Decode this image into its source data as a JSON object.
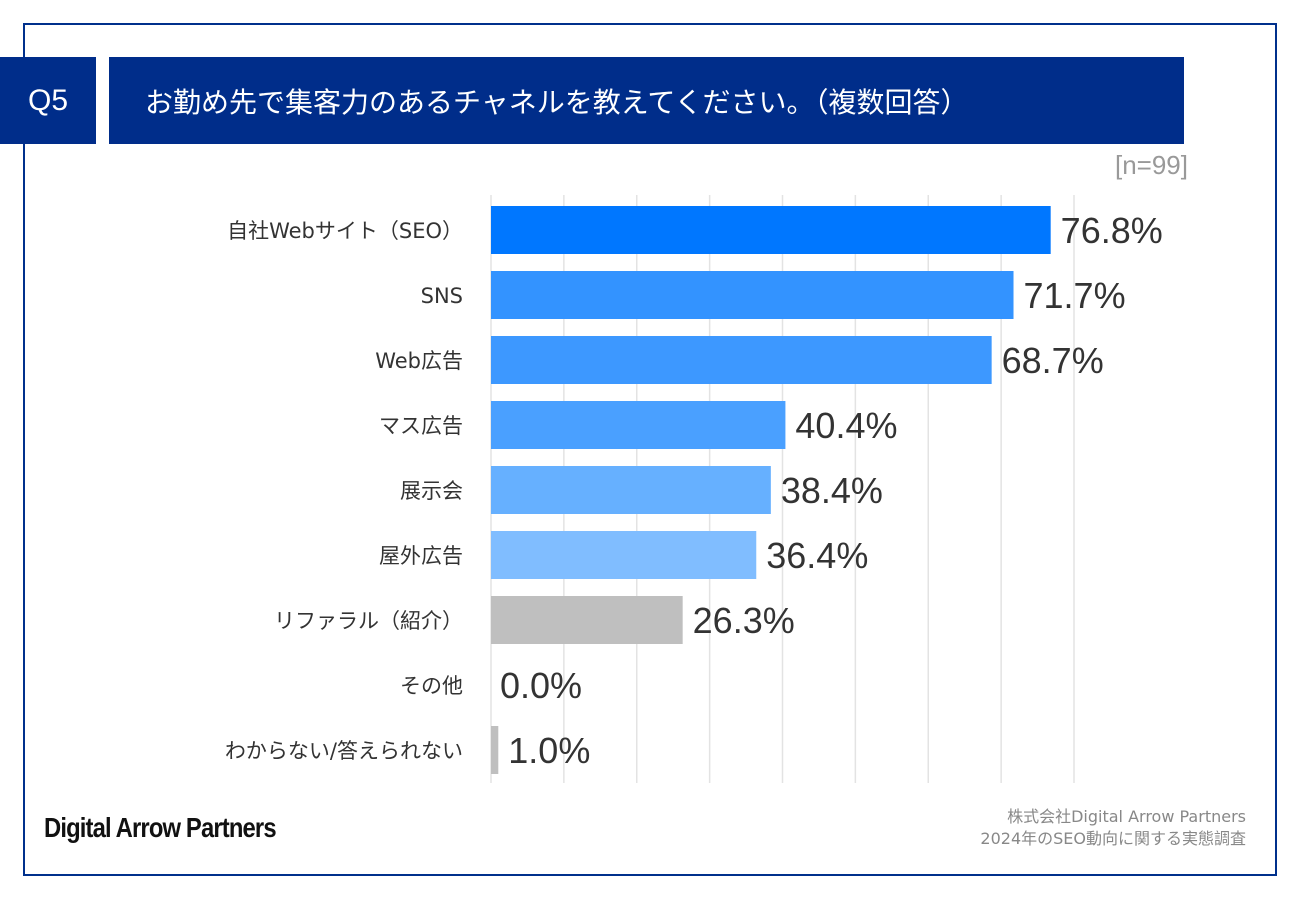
{
  "header": {
    "question_label": "Q5",
    "title": "お勤め先で集客力のあるチャネルを教えてください。（複数回答）",
    "sample_size": "[n=99]"
  },
  "chart_data": {
    "type": "bar",
    "orientation": "horizontal",
    "categories": [
      "自社Webサイト（SEO）",
      "SNS",
      "Web広告",
      "マス広告",
      "展示会",
      "屋外広告",
      "リファラル（紹介）",
      "その他",
      "わからない/答えられない"
    ],
    "values": [
      76.8,
      71.7,
      68.7,
      40.4,
      38.4,
      36.4,
      26.3,
      0.0,
      1.0
    ],
    "value_labels": [
      "76.8%",
      "71.7%",
      "68.7%",
      "40.4%",
      "38.4%",
      "36.4%",
      "26.3%",
      "0.0%",
      "1.0%"
    ],
    "colors": [
      "#0077ff",
      "#3393ff",
      "#3d98ff",
      "#4aa0ff",
      "#66b0ff",
      "#80bdff",
      "#bfbfbf",
      "#bfbfbf",
      "#bfbfbf"
    ],
    "xlim": [
      0,
      80
    ],
    "grid": true,
    "xlabel": "",
    "ylabel": ""
  },
  "footer": {
    "logo": "Digital Arrow Partners",
    "source_line1": "株式会社Digital Arrow Partners",
    "source_line2": "2024年のSEO動向に関する実態調査"
  }
}
